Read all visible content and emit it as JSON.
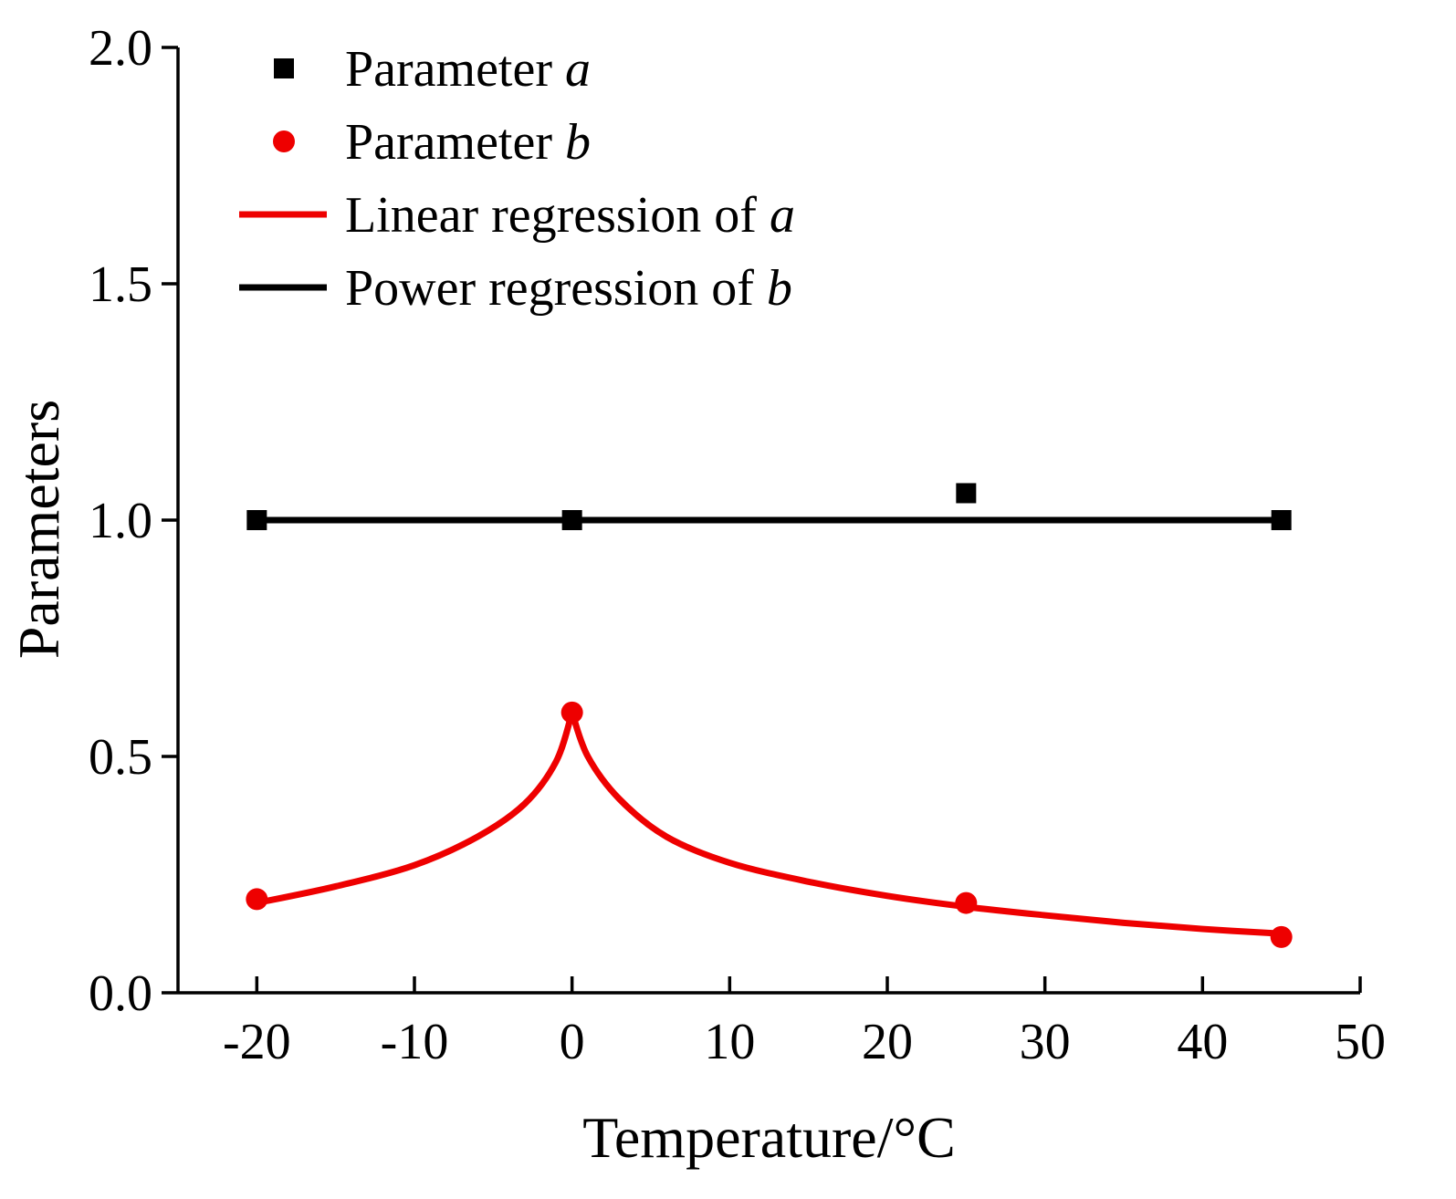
{
  "chart_data": {
    "type": "scatter",
    "title": "",
    "xlabel": "Temperature/°C",
    "ylabel": "Parameters",
    "xlim": [
      -25,
      50
    ],
    "ylim": [
      0.0,
      2.0
    ],
    "xticks": [
      -20,
      -10,
      0,
      10,
      20,
      30,
      40,
      50
    ],
    "xtick_labels": [
      "-20",
      "-10",
      "0",
      "10",
      "20",
      "30",
      "40",
      "50"
    ],
    "yticks": [
      0.0,
      0.5,
      1.0,
      1.5,
      2.0
    ],
    "ytick_labels": [
      "0.0",
      "0.5",
      "1.0",
      "1.5",
      "2.0"
    ],
    "grid": false,
    "legend_position": "top-left",
    "series": [
      {
        "name": "Parameter a",
        "label": "Parameter ",
        "label_var": "a",
        "kind": "scatter",
        "marker": "square",
        "color": "#000000",
        "x": [
          -20,
          0,
          25,
          45
        ],
        "y": [
          1.0,
          1.0,
          1.057,
          1.0
        ]
      },
      {
        "name": "Parameter b",
        "label": "Parameter ",
        "label_var": "b",
        "kind": "scatter",
        "marker": "circle",
        "color": "#ee0000",
        "x": [
          -20,
          0,
          25,
          45
        ],
        "y": [
          0.198,
          0.593,
          0.19,
          0.118
        ]
      },
      {
        "name": "Linear regression of a",
        "label": "Linear regression of ",
        "label_var": "a",
        "kind": "line",
        "color": "#ee0000",
        "x": [
          -20,
          -15,
          -10,
          -6,
          -3,
          -1,
          0,
          1,
          3,
          6,
          10,
          15,
          20,
          25,
          30,
          35,
          40,
          45
        ],
        "y": [
          0.19,
          0.225,
          0.27,
          0.33,
          0.4,
          0.49,
          0.593,
          0.5,
          0.41,
          0.33,
          0.275,
          0.235,
          0.205,
          0.182,
          0.164,
          0.148,
          0.135,
          0.125
        ]
      },
      {
        "name": "Power regression of b",
        "label": "Power regression of ",
        "label_var": "b",
        "kind": "line",
        "color": "#000000",
        "x": [
          -20,
          45
        ],
        "y": [
          1.0,
          1.0
        ]
      }
    ]
  }
}
